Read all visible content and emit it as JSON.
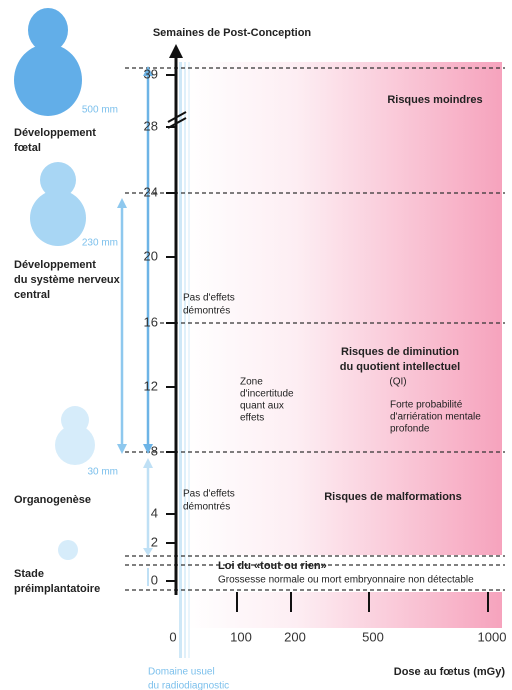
{
  "title": "Semaines de Post-Conception",
  "y_axis": {
    "ticks": [
      39,
      28,
      24,
      20,
      16,
      12,
      8,
      4,
      2,
      0
    ]
  },
  "x_axis": {
    "ticks": [
      0,
      100,
      200,
      500,
      1000
    ],
    "label": "Dose au fœtus (mGy)",
    "usual_domain": [
      "Domaine usuel",
      "du radiodiagnostic"
    ]
  },
  "stages": [
    {
      "label": [
        "Développement",
        "fœtal"
      ],
      "size": "500 mm"
    },
    {
      "label": [
        "Développement",
        "du système nerveux",
        "central"
      ],
      "size": "230 mm"
    },
    {
      "label": [
        "Organogenèse"
      ],
      "size": "30 mm"
    },
    {
      "label": [
        "Stade",
        "préimplantatoire"
      ]
    }
  ],
  "zones": {
    "low_risk": "Risques moindres",
    "no_effect": [
      "Pas d'effets",
      "démontrés"
    ],
    "iq_risk": [
      "Risques de diminution",
      "du quotient intellectuel"
    ],
    "iq_abbr": "(QI)",
    "uncertain": [
      "Zone",
      "d'incertitude",
      "quant aux",
      "effets"
    ],
    "retardation": [
      "Forte probabilité",
      "d'arriération mentale",
      "profonde"
    ],
    "no_effect_2": [
      "Pas d'effets",
      "démontrés"
    ],
    "malformation": "Risques de malformations",
    "all_or_nothing": "Loi du «tout ou rien»",
    "all_or_nothing_note": "Grossesse normale ou mort embryonnaire non détectable"
  }
}
